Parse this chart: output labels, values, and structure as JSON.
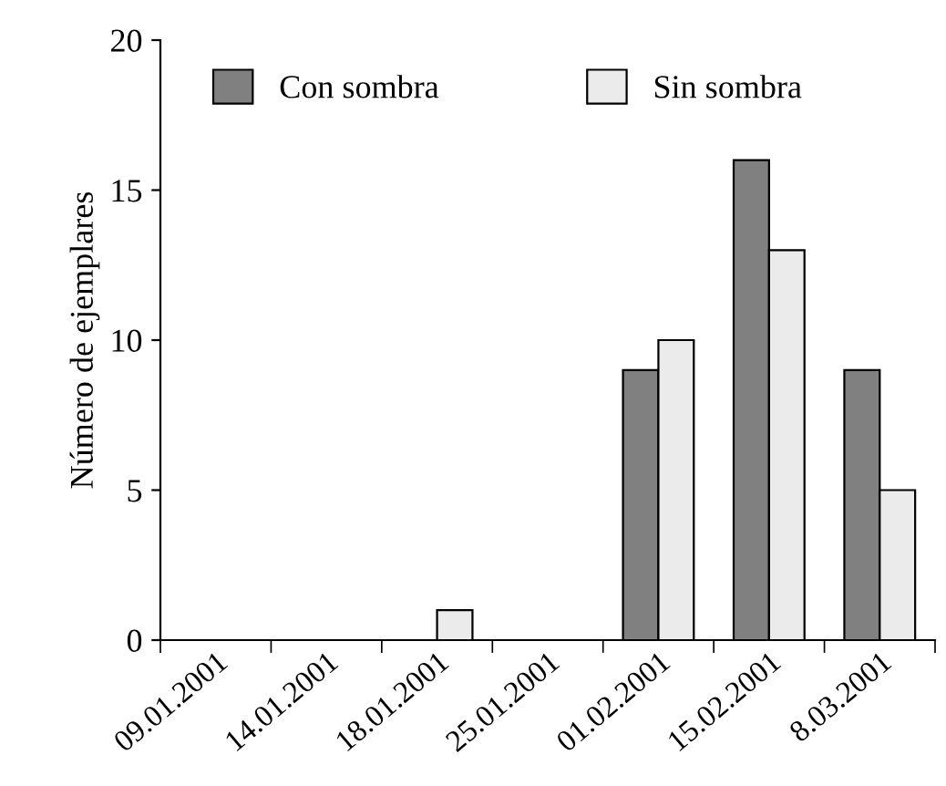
{
  "chart_data": {
    "type": "bar",
    "ylabel": "Número de ejemplares",
    "categories": [
      "09.01.2001",
      "14.01.2001",
      "18.01.2001",
      "25.01.2001",
      "01.02.2001",
      "15.02.2001",
      "8.03.2001"
    ],
    "series": [
      {
        "name": "Con sombra",
        "color": "#808080",
        "values": [
          0,
          0,
          0,
          0,
          9,
          16,
          9
        ]
      },
      {
        "name": "Sin sombra",
        "color": "#ebebeb",
        "values": [
          0,
          0,
          1,
          0,
          10,
          13,
          5
        ]
      }
    ],
    "ylim": [
      0,
      20
    ],
    "yticks": [
      0,
      5,
      10,
      15,
      20
    ],
    "grid": false,
    "legend": "top left"
  }
}
